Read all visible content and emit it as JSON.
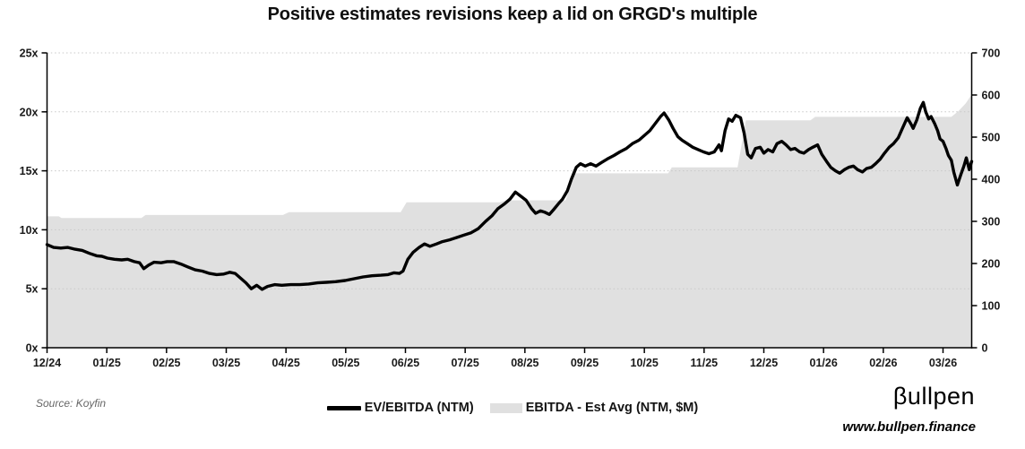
{
  "title": "Positive estimates revisions keep a lid on GRGD's multiple",
  "source": "Source: Koyfin",
  "logo": {
    "wordmark": "βullpen",
    "url": "www.bullpen.finance"
  },
  "legend": {
    "items": [
      {
        "label": "EV/EBITDA (NTM)",
        "swatch": "line",
        "color": "#000000"
      },
      {
        "label": "EBITDA - Est Avg (NTM, $M)",
        "swatch": "area",
        "color": "#e0e0e0"
      }
    ]
  },
  "chart_data": {
    "type": "line+area",
    "title": "Positive estimates revisions keep a lid on GRGD's multiple",
    "grid": {
      "horizontal": "dotted",
      "color": "#c8c8c8"
    },
    "x_axis": {
      "unit": "months after first tick (12/24)",
      "tick_labels": [
        "12/24",
        "01/25",
        "02/25",
        "03/25",
        "04/25",
        "05/25",
        "06/25",
        "07/25",
        "08/25",
        "09/25",
        "10/25",
        "11/25",
        "12/25",
        "01/26",
        "02/26",
        "03/26"
      ],
      "tick_positions": [
        0,
        1,
        2,
        3,
        4,
        5,
        6,
        7,
        8,
        9,
        10,
        11,
        12,
        13,
        14,
        15
      ],
      "range": [
        0,
        15.48
      ]
    },
    "y_axis_left": {
      "series": "EV/EBITDA (NTM)",
      "ticks": [
        0,
        5,
        10,
        15,
        20,
        25
      ],
      "tick_labels": [
        "0x",
        "5x",
        "10x",
        "15x",
        "20x",
        "25x"
      ],
      "range": [
        0,
        25
      ]
    },
    "y_axis_right": {
      "series": "EBITDA - Est Avg (NTM, $M)",
      "ticks": [
        0,
        100,
        200,
        300,
        400,
        500,
        600,
        700
      ],
      "tick_labels": [
        "0",
        "100",
        "200",
        "300",
        "400",
        "500",
        "600",
        "700"
      ],
      "range": [
        0,
        700
      ]
    },
    "series": [
      {
        "name": "EV/EBITDA (NTM)",
        "type": "line",
        "axis": "left",
        "color": "#000000",
        "points": [
          [
            0.0,
            8.75
          ],
          [
            0.11,
            8.5
          ],
          [
            0.23,
            8.45
          ],
          [
            0.35,
            8.5
          ],
          [
            0.47,
            8.35
          ],
          [
            0.59,
            8.25
          ],
          [
            0.71,
            8.0
          ],
          [
            0.83,
            7.8
          ],
          [
            0.92,
            7.75
          ],
          [
            1.01,
            7.6
          ],
          [
            1.13,
            7.5
          ],
          [
            1.25,
            7.45
          ],
          [
            1.35,
            7.5
          ],
          [
            1.46,
            7.3
          ],
          [
            1.55,
            7.2
          ],
          [
            1.62,
            6.7
          ],
          [
            1.7,
            7.0
          ],
          [
            1.79,
            7.25
          ],
          [
            1.91,
            7.2
          ],
          [
            2.01,
            7.3
          ],
          [
            2.12,
            7.3
          ],
          [
            2.24,
            7.1
          ],
          [
            2.36,
            6.85
          ],
          [
            2.48,
            6.6
          ],
          [
            2.6,
            6.5
          ],
          [
            2.72,
            6.3
          ],
          [
            2.84,
            6.2
          ],
          [
            2.96,
            6.25
          ],
          [
            3.06,
            6.4
          ],
          [
            3.15,
            6.3
          ],
          [
            3.24,
            5.9
          ],
          [
            3.33,
            5.5
          ],
          [
            3.42,
            5.0
          ],
          [
            3.51,
            5.3
          ],
          [
            3.6,
            4.95
          ],
          [
            3.69,
            5.2
          ],
          [
            3.81,
            5.35
          ],
          [
            3.93,
            5.3
          ],
          [
            4.08,
            5.35
          ],
          [
            4.23,
            5.35
          ],
          [
            4.38,
            5.4
          ],
          [
            4.53,
            5.5
          ],
          [
            4.68,
            5.55
          ],
          [
            4.83,
            5.6
          ],
          [
            4.99,
            5.7
          ],
          [
            5.14,
            5.85
          ],
          [
            5.29,
            6.0
          ],
          [
            5.44,
            6.1
          ],
          [
            5.59,
            6.15
          ],
          [
            5.71,
            6.2
          ],
          [
            5.81,
            6.35
          ],
          [
            5.9,
            6.3
          ],
          [
            5.96,
            6.5
          ],
          [
            6.04,
            7.5
          ],
          [
            6.13,
            8.1
          ],
          [
            6.23,
            8.5
          ],
          [
            6.32,
            8.8
          ],
          [
            6.41,
            8.6
          ],
          [
            6.52,
            8.8
          ],
          [
            6.62,
            9.0
          ],
          [
            6.74,
            9.15
          ],
          [
            6.86,
            9.35
          ],
          [
            6.98,
            9.55
          ],
          [
            7.1,
            9.75
          ],
          [
            7.22,
            10.1
          ],
          [
            7.34,
            10.7
          ],
          [
            7.45,
            11.2
          ],
          [
            7.55,
            11.8
          ],
          [
            7.66,
            12.2
          ],
          [
            7.75,
            12.6
          ],
          [
            7.84,
            13.2
          ],
          [
            7.93,
            12.85
          ],
          [
            8.02,
            12.5
          ],
          [
            8.11,
            11.8
          ],
          [
            8.18,
            11.4
          ],
          [
            8.26,
            11.6
          ],
          [
            8.33,
            11.5
          ],
          [
            8.41,
            11.3
          ],
          [
            8.48,
            11.7
          ],
          [
            8.56,
            12.2
          ],
          [
            8.63,
            12.6
          ],
          [
            8.71,
            13.3
          ],
          [
            8.78,
            14.3
          ],
          [
            8.86,
            15.3
          ],
          [
            8.93,
            15.6
          ],
          [
            9.01,
            15.4
          ],
          [
            9.1,
            15.6
          ],
          [
            9.19,
            15.4
          ],
          [
            9.28,
            15.7
          ],
          [
            9.38,
            16.0
          ],
          [
            9.49,
            16.3
          ],
          [
            9.59,
            16.6
          ],
          [
            9.7,
            16.9
          ],
          [
            9.8,
            17.3
          ],
          [
            9.91,
            17.6
          ],
          [
            10.0,
            18.0
          ],
          [
            10.09,
            18.4
          ],
          [
            10.18,
            19.0
          ],
          [
            10.27,
            19.6
          ],
          [
            10.33,
            19.9
          ],
          [
            10.41,
            19.3
          ],
          [
            10.48,
            18.6
          ],
          [
            10.56,
            17.9
          ],
          [
            10.63,
            17.6
          ],
          [
            10.72,
            17.3
          ],
          [
            10.81,
            17.0
          ],
          [
            10.9,
            16.8
          ],
          [
            10.99,
            16.6
          ],
          [
            11.08,
            16.45
          ],
          [
            11.17,
            16.6
          ],
          [
            11.25,
            17.2
          ],
          [
            11.29,
            16.7
          ],
          [
            11.35,
            18.4
          ],
          [
            11.41,
            19.4
          ],
          [
            11.47,
            19.2
          ],
          [
            11.53,
            19.7
          ],
          [
            11.61,
            19.5
          ],
          [
            11.67,
            18.2
          ],
          [
            11.73,
            16.4
          ],
          [
            11.79,
            16.1
          ],
          [
            11.86,
            16.9
          ],
          [
            11.94,
            17.0
          ],
          [
            12.0,
            16.5
          ],
          [
            12.07,
            16.8
          ],
          [
            12.15,
            16.6
          ],
          [
            12.22,
            17.3
          ],
          [
            12.3,
            17.5
          ],
          [
            12.37,
            17.2
          ],
          [
            12.45,
            16.8
          ],
          [
            12.52,
            16.9
          ],
          [
            12.6,
            16.6
          ],
          [
            12.67,
            16.5
          ],
          [
            12.75,
            16.8
          ],
          [
            12.82,
            17.0
          ],
          [
            12.9,
            17.2
          ],
          [
            12.97,
            16.4
          ],
          [
            13.05,
            15.8
          ],
          [
            13.12,
            15.3
          ],
          [
            13.2,
            15.0
          ],
          [
            13.27,
            14.8
          ],
          [
            13.35,
            15.1
          ],
          [
            13.42,
            15.3
          ],
          [
            13.5,
            15.4
          ],
          [
            13.57,
            15.1
          ],
          [
            13.65,
            14.9
          ],
          [
            13.72,
            15.2
          ],
          [
            13.8,
            15.3
          ],
          [
            13.87,
            15.6
          ],
          [
            13.95,
            16.0
          ],
          [
            14.02,
            16.5
          ],
          [
            14.1,
            17.0
          ],
          [
            14.17,
            17.3
          ],
          [
            14.25,
            17.8
          ],
          [
            14.32,
            18.6
          ],
          [
            14.4,
            19.5
          ],
          [
            14.46,
            19.0
          ],
          [
            14.5,
            18.6
          ],
          [
            14.56,
            19.3
          ],
          [
            14.62,
            20.3
          ],
          [
            14.67,
            20.8
          ],
          [
            14.71,
            20.0
          ],
          [
            14.76,
            19.4
          ],
          [
            14.8,
            19.6
          ],
          [
            14.86,
            19.0
          ],
          [
            14.91,
            18.4
          ],
          [
            14.95,
            17.7
          ],
          [
            15.0,
            17.5
          ],
          [
            15.05,
            16.9
          ],
          [
            15.09,
            16.3
          ],
          [
            15.14,
            15.9
          ],
          [
            15.18,
            14.9
          ],
          [
            15.24,
            13.8
          ],
          [
            15.3,
            14.7
          ],
          [
            15.35,
            15.4
          ],
          [
            15.39,
            16.1
          ],
          [
            15.44,
            15.1
          ],
          [
            15.48,
            15.8
          ]
        ]
      },
      {
        "name": "EBITDA - Est Avg (NTM, $M)",
        "type": "area",
        "axis": "right",
        "color": "#e0e0e0",
        "points": [
          [
            0.0,
            312
          ],
          [
            0.2,
            312
          ],
          [
            0.24,
            308
          ],
          [
            1.58,
            308
          ],
          [
            1.65,
            315
          ],
          [
            3.95,
            315
          ],
          [
            4.05,
            322
          ],
          [
            5.92,
            322
          ],
          [
            6.02,
            345
          ],
          [
            7.58,
            345
          ],
          [
            7.68,
            350
          ],
          [
            8.68,
            350
          ],
          [
            8.84,
            414
          ],
          [
            10.4,
            414
          ],
          [
            10.46,
            428
          ],
          [
            11.56,
            428
          ],
          [
            11.7,
            540
          ],
          [
            12.78,
            540
          ],
          [
            12.86,
            548
          ],
          [
            15.14,
            548
          ],
          [
            15.26,
            562
          ],
          [
            15.38,
            580
          ],
          [
            15.46,
            597
          ],
          [
            15.48,
            598
          ]
        ]
      }
    ]
  }
}
